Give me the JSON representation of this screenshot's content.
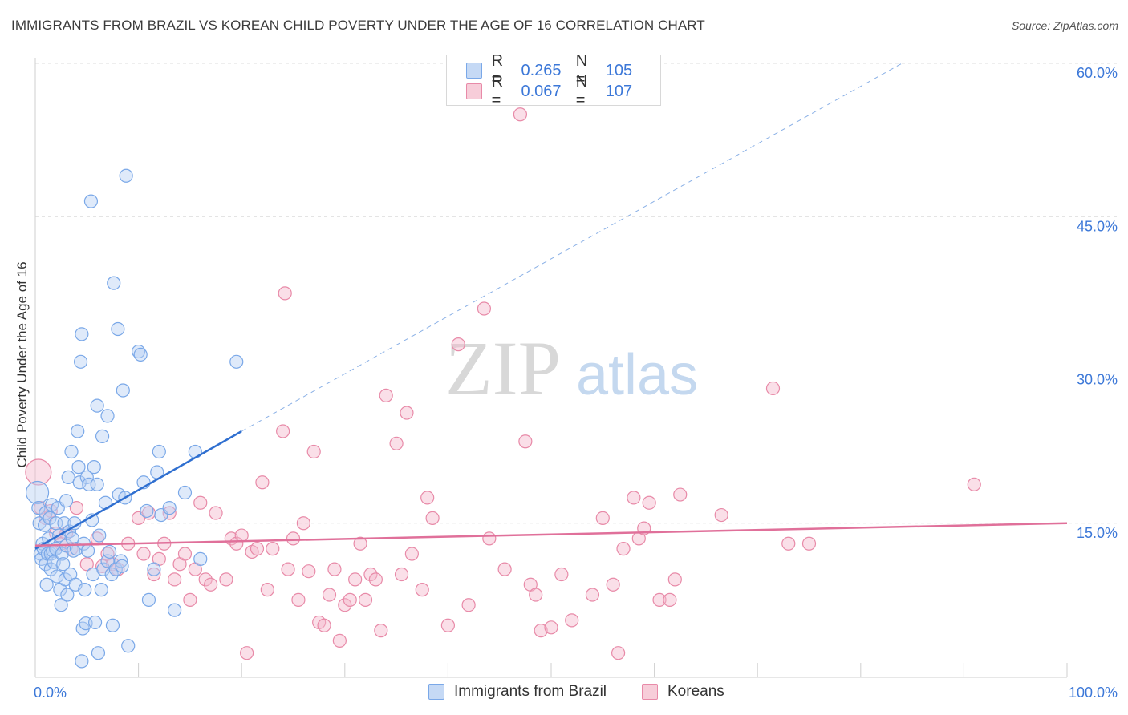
{
  "title": "IMMIGRANTS FROM BRAZIL VS KOREAN CHILD POVERTY UNDER THE AGE OF 16 CORRELATION CHART",
  "source": "Source: ZipAtlas.com",
  "watermark": {
    "zip": "ZIP",
    "atlas": "atlas"
  },
  "legend": {
    "r_label": "R =",
    "n_label": "N =",
    "rows": [
      {
        "r": "0.265",
        "n": "105",
        "color": "#7aa8e8",
        "fill": "#c5d9f5"
      },
      {
        "r": "0.067",
        "n": "107",
        "color": "#e88aa8",
        "fill": "#f7cdd9"
      }
    ]
  },
  "colors": {
    "blue_line": "#2f6fd0",
    "pink_line": "#e0709a",
    "tick_text": "#3c78d8",
    "grid": "#dcdcdc"
  },
  "chart_data": {
    "type": "scatter",
    "title": "IMMIGRANTS FROM BRAZIL VS KOREAN CHILD POVERTY UNDER THE AGE OF 16 CORRELATION CHART",
    "xlabel": "",
    "ylabel": "Child Poverty Under the Age of 16",
    "xlim": [
      0,
      100
    ],
    "ylim": [
      0,
      60
    ],
    "x_tick_labels": [
      "0.0%",
      "100.0%"
    ],
    "y_ticks": [
      15,
      30,
      45,
      60
    ],
    "y_tick_labels": [
      "15.0%",
      "30.0%",
      "45.0%",
      "60.0%"
    ],
    "grid": true,
    "legend_position": "bottom-center",
    "series": [
      {
        "name": "Immigrants from Brazil",
        "color": "#7aa8e8",
        "trend": {
          "x0": 0,
          "y0": 12.5,
          "x1": 20,
          "y1": 24,
          "dashed_to_x": 84,
          "dashed_y": 60.0
        },
        "points": [
          [
            0.2,
            18.0
          ],
          [
            0.3,
            16.5
          ],
          [
            0.4,
            15.0
          ],
          [
            0.5,
            12.0
          ],
          [
            0.6,
            11.5
          ],
          [
            0.7,
            13.0
          ],
          [
            0.8,
            12.5
          ],
          [
            0.9,
            14.8
          ],
          [
            1.0,
            16.0
          ],
          [
            1.0,
            11.0
          ],
          [
            1.1,
            9.0
          ],
          [
            1.2,
            12.0
          ],
          [
            1.3,
            13.5
          ],
          [
            1.4,
            15.5
          ],
          [
            1.5,
            12.0
          ],
          [
            1.5,
            10.5
          ],
          [
            1.6,
            16.8
          ],
          [
            1.7,
            12.3
          ],
          [
            1.8,
            11.2
          ],
          [
            2.0,
            15.0
          ],
          [
            2.0,
            12.5
          ],
          [
            2.1,
            9.8
          ],
          [
            2.2,
            16.5
          ],
          [
            2.3,
            13.8
          ],
          [
            2.4,
            8.5
          ],
          [
            2.5,
            7.0
          ],
          [
            2.6,
            12.0
          ],
          [
            2.7,
            11.0
          ],
          [
            2.8,
            15.0
          ],
          [
            2.9,
            9.5
          ],
          [
            3.0,
            17.2
          ],
          [
            3.0,
            12.8
          ],
          [
            3.1,
            8.0
          ],
          [
            3.2,
            19.5
          ],
          [
            3.3,
            14.2
          ],
          [
            3.4,
            10.0
          ],
          [
            3.5,
            22.0
          ],
          [
            3.6,
            13.5
          ],
          [
            3.7,
            12.3
          ],
          [
            3.8,
            15.0
          ],
          [
            3.9,
            9.0
          ],
          [
            4.0,
            12.5
          ],
          [
            4.1,
            24.0
          ],
          [
            4.2,
            20.5
          ],
          [
            4.3,
            19.0
          ],
          [
            4.4,
            30.8
          ],
          [
            4.5,
            33.5
          ],
          [
            4.5,
            1.5
          ],
          [
            4.6,
            4.7
          ],
          [
            4.7,
            13.0
          ],
          [
            4.8,
            8.5
          ],
          [
            4.9,
            5.2
          ],
          [
            5.0,
            19.5
          ],
          [
            5.1,
            12.3
          ],
          [
            5.2,
            18.8
          ],
          [
            5.4,
            46.5
          ],
          [
            5.5,
            15.3
          ],
          [
            5.6,
            10.0
          ],
          [
            5.7,
            20.5
          ],
          [
            5.8,
            5.3
          ],
          [
            6.0,
            26.5
          ],
          [
            6.0,
            18.8
          ],
          [
            6.1,
            2.3
          ],
          [
            6.2,
            13.8
          ],
          [
            6.4,
            8.5
          ],
          [
            6.5,
            23.5
          ],
          [
            6.6,
            10.5
          ],
          [
            6.8,
            17.0
          ],
          [
            7.0,
            25.5
          ],
          [
            7.0,
            11.3
          ],
          [
            7.2,
            12.2
          ],
          [
            7.4,
            10.0
          ],
          [
            7.5,
            5.0
          ],
          [
            7.6,
            38.5
          ],
          [
            7.8,
            10.5
          ],
          [
            8.0,
            34.0
          ],
          [
            8.1,
            17.8
          ],
          [
            8.3,
            11.3
          ],
          [
            8.4,
            10.8
          ],
          [
            8.5,
            28.0
          ],
          [
            8.7,
            17.5
          ],
          [
            8.8,
            49.0
          ],
          [
            9.0,
            3.0
          ],
          [
            10.0,
            31.8
          ],
          [
            10.2,
            31.5
          ],
          [
            10.5,
            19.0
          ],
          [
            10.8,
            16.2
          ],
          [
            11.0,
            7.5
          ],
          [
            11.5,
            10.5
          ],
          [
            11.8,
            20.0
          ],
          [
            12.0,
            22.0
          ],
          [
            12.2,
            15.8
          ],
          [
            13.0,
            16.5
          ],
          [
            13.5,
            6.5
          ],
          [
            14.5,
            18.0
          ],
          [
            15.5,
            22.0
          ],
          [
            16.0,
            11.5
          ],
          [
            19.5,
            30.8
          ]
        ]
      },
      {
        "name": "Koreans",
        "color": "#e88aa8",
        "trend": {
          "x0": 0,
          "y0": 12.8,
          "x1": 100,
          "y1": 15.0
        },
        "points": [
          [
            0.3,
            20.0
          ],
          [
            0.5,
            16.5
          ],
          [
            1.0,
            15.5
          ],
          [
            1.5,
            16.2
          ],
          [
            2.0,
            14.0
          ],
          [
            2.5,
            13.0
          ],
          [
            3.0,
            14.0
          ],
          [
            3.5,
            12.5
          ],
          [
            4.0,
            16.5
          ],
          [
            5.0,
            11.0
          ],
          [
            6.0,
            13.5
          ],
          [
            6.5,
            10.8
          ],
          [
            7.0,
            12.0
          ],
          [
            7.5,
            11.0
          ],
          [
            8.0,
            10.5
          ],
          [
            9.0,
            13.0
          ],
          [
            10.0,
            15.5
          ],
          [
            10.5,
            12.0
          ],
          [
            11.0,
            16.0
          ],
          [
            11.5,
            10.0
          ],
          [
            12.0,
            11.5
          ],
          [
            12.5,
            13.0
          ],
          [
            13.0,
            16.0
          ],
          [
            13.5,
            9.5
          ],
          [
            14.0,
            11.0
          ],
          [
            14.5,
            12.0
          ],
          [
            15.0,
            7.5
          ],
          [
            15.5,
            10.5
          ],
          [
            16.0,
            17.0
          ],
          [
            16.5,
            9.5
          ],
          [
            17.0,
            9.0
          ],
          [
            17.5,
            16.0
          ],
          [
            18.5,
            9.5
          ],
          [
            19.0,
            13.5
          ],
          [
            19.5,
            13.0
          ],
          [
            20.0,
            13.8
          ],
          [
            20.5,
            2.3
          ],
          [
            21.0,
            12.2
          ],
          [
            21.5,
            12.5
          ],
          [
            22.0,
            19.0
          ],
          [
            22.5,
            8.5
          ],
          [
            23.0,
            12.5
          ],
          [
            24.0,
            24.0
          ],
          [
            24.2,
            37.5
          ],
          [
            24.5,
            10.5
          ],
          [
            25.0,
            13.5
          ],
          [
            25.5,
            7.5
          ],
          [
            26.0,
            15.0
          ],
          [
            26.5,
            10.3
          ],
          [
            27.0,
            22.0
          ],
          [
            27.5,
            5.3
          ],
          [
            28.0,
            5.0
          ],
          [
            28.5,
            8.0
          ],
          [
            29.0,
            10.5
          ],
          [
            29.5,
            3.5
          ],
          [
            30.0,
            7.0
          ],
          [
            30.5,
            7.5
          ],
          [
            31.0,
            9.5
          ],
          [
            31.5,
            13.0
          ],
          [
            32.0,
            7.5
          ],
          [
            32.5,
            10.0
          ],
          [
            33.0,
            9.5
          ],
          [
            33.5,
            4.5
          ],
          [
            34.0,
            27.5
          ],
          [
            35.0,
            22.8
          ],
          [
            35.5,
            10.0
          ],
          [
            36.0,
            25.8
          ],
          [
            36.5,
            12.0
          ],
          [
            37.5,
            8.5
          ],
          [
            38.0,
            17.5
          ],
          [
            38.5,
            15.5
          ],
          [
            40.0,
            5.0
          ],
          [
            41.0,
            32.5
          ],
          [
            42.0,
            7.0
          ],
          [
            43.5,
            36.0
          ],
          [
            44.0,
            13.5
          ],
          [
            45.5,
            10.5
          ],
          [
            47.0,
            55.0
          ],
          [
            47.5,
            23.0
          ],
          [
            48.0,
            9.0
          ],
          [
            48.5,
            8.0
          ],
          [
            49.0,
            4.5
          ],
          [
            50.0,
            4.8
          ],
          [
            51.0,
            10.0
          ],
          [
            52.0,
            5.5
          ],
          [
            54.0,
            8.0
          ],
          [
            55.0,
            15.5
          ],
          [
            56.0,
            9.0
          ],
          [
            56.5,
            2.3
          ],
          [
            57.0,
            12.5
          ],
          [
            58.0,
            17.5
          ],
          [
            58.5,
            13.5
          ],
          [
            59.0,
            14.5
          ],
          [
            59.5,
            17.0
          ],
          [
            60.5,
            7.5
          ],
          [
            61.5,
            7.5
          ],
          [
            62.0,
            9.5
          ],
          [
            62.5,
            17.8
          ],
          [
            66.5,
            15.8
          ],
          [
            71.5,
            28.2
          ],
          [
            73.0,
            13.0
          ],
          [
            75.0,
            13.0
          ],
          [
            91.0,
            18.8
          ]
        ]
      }
    ]
  }
}
